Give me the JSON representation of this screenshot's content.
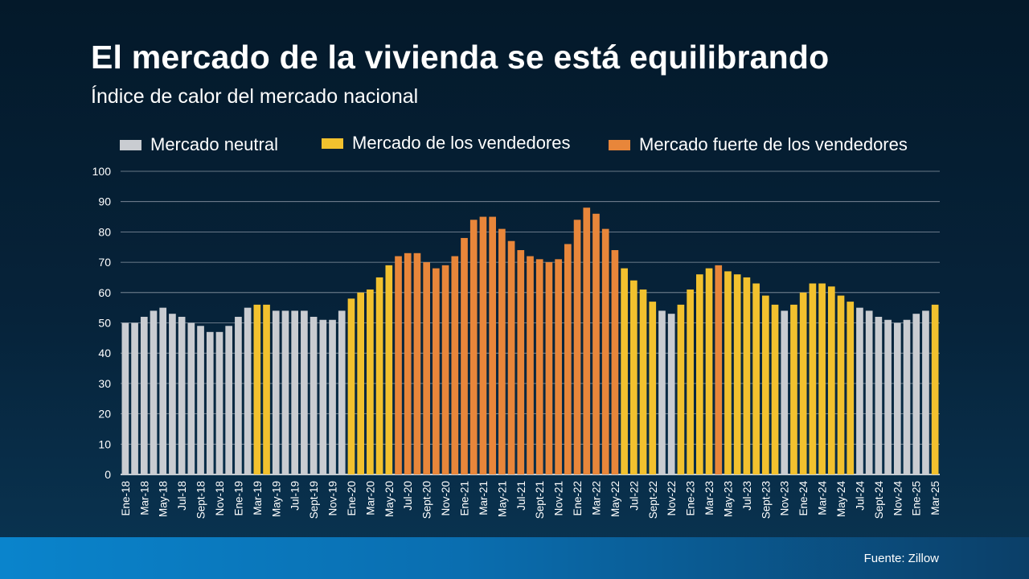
{
  "header": {
    "title": "El mercado de la vivienda se está equilibrando",
    "subtitle": "Índice de calor del mercado nacional"
  },
  "legend": [
    {
      "key": "neutral",
      "label": "Mercado neutral"
    },
    {
      "key": "sellers",
      "label": "Mercado de los vendedores"
    },
    {
      "key": "strong",
      "label": "Mercado fuerte de los vendedores"
    }
  ],
  "colors": {
    "neutral": "#c9ccd1",
    "sellers": "#f2c12e",
    "strong": "#e8863a",
    "grid": "#8a96a3",
    "text": "#ffffff"
  },
  "footer": {
    "source": "Fuente: Zillow"
  },
  "chart_data": {
    "type": "bar",
    "title": "Índice de calor del mercado nacional",
    "xlabel": "",
    "ylabel": "",
    "ylim": [
      0,
      100
    ],
    "yticks": [
      0,
      10,
      20,
      30,
      40,
      50,
      60,
      70,
      80,
      90,
      100
    ],
    "grid": true,
    "legend_position": "top",
    "x_tick_labels": [
      "Ene-18",
      "Mar-18",
      "May-18",
      "Jul-18",
      "Sept-18",
      "Nov-18",
      "Ene-19",
      "Mar-19",
      "May-19",
      "Jul-19",
      "Sept-19",
      "Nov-19",
      "Ene-20",
      "Mar-20",
      "May-20",
      "Jul-20",
      "Sept-20",
      "Nov-20",
      "Ene-21",
      "Mar-21",
      "May-21",
      "Jul-21",
      "Sept-21",
      "Nov-21",
      "Ene-22",
      "Mar-22",
      "May-22",
      "Jul-22",
      "Sept-22",
      "Nov-22",
      "Ene-23",
      "Mar-23",
      "May-23",
      "Jul-23",
      "Sept-23",
      "Nov-23",
      "Ene-24",
      "Mar-24",
      "May-24",
      "Jul-24",
      "Sept-24",
      "Nov-24",
      "Ene-25",
      "Mar-25"
    ],
    "values": [
      50,
      50,
      52,
      54,
      55,
      53,
      52,
      50,
      49,
      47,
      47,
      49,
      52,
      55,
      56,
      56,
      54,
      54,
      54,
      54,
      52,
      51,
      51,
      54,
      58,
      60,
      61,
      65,
      69,
      72,
      73,
      73,
      70,
      68,
      69,
      72,
      78,
      84,
      85,
      85,
      81,
      77,
      74,
      72,
      71,
      70,
      71,
      76,
      84,
      88,
      86,
      81,
      74,
      68,
      64,
      61,
      57,
      54,
      53,
      56,
      61,
      66,
      68,
      69,
      67,
      66,
      65,
      63,
      59,
      56,
      54,
      56,
      60,
      63,
      63,
      62,
      59,
      57,
      55,
      54,
      52,
      51,
      50,
      51,
      53,
      54,
      56
    ],
    "categories": [
      "neutral",
      "neutral",
      "neutral",
      "neutral",
      "neutral",
      "neutral",
      "neutral",
      "neutral",
      "neutral",
      "neutral",
      "neutral",
      "neutral",
      "neutral",
      "neutral",
      "sellers",
      "sellers",
      "neutral",
      "neutral",
      "neutral",
      "neutral",
      "neutral",
      "neutral",
      "neutral",
      "neutral",
      "sellers",
      "sellers",
      "sellers",
      "sellers",
      "sellers",
      "strong",
      "strong",
      "strong",
      "strong",
      "strong",
      "strong",
      "strong",
      "strong",
      "strong",
      "strong",
      "strong",
      "strong",
      "strong",
      "strong",
      "strong",
      "strong",
      "strong",
      "strong",
      "strong",
      "strong",
      "strong",
      "strong",
      "strong",
      "strong",
      "sellers",
      "sellers",
      "sellers",
      "sellers",
      "neutral",
      "neutral",
      "sellers",
      "sellers",
      "sellers",
      "sellers",
      "strong",
      "sellers",
      "sellers",
      "sellers",
      "sellers",
      "sellers",
      "sellers",
      "neutral",
      "sellers",
      "sellers",
      "sellers",
      "sellers",
      "sellers",
      "sellers",
      "sellers",
      "neutral",
      "neutral",
      "neutral",
      "neutral",
      "neutral",
      "neutral",
      "neutral",
      "neutral",
      "sellers"
    ]
  }
}
